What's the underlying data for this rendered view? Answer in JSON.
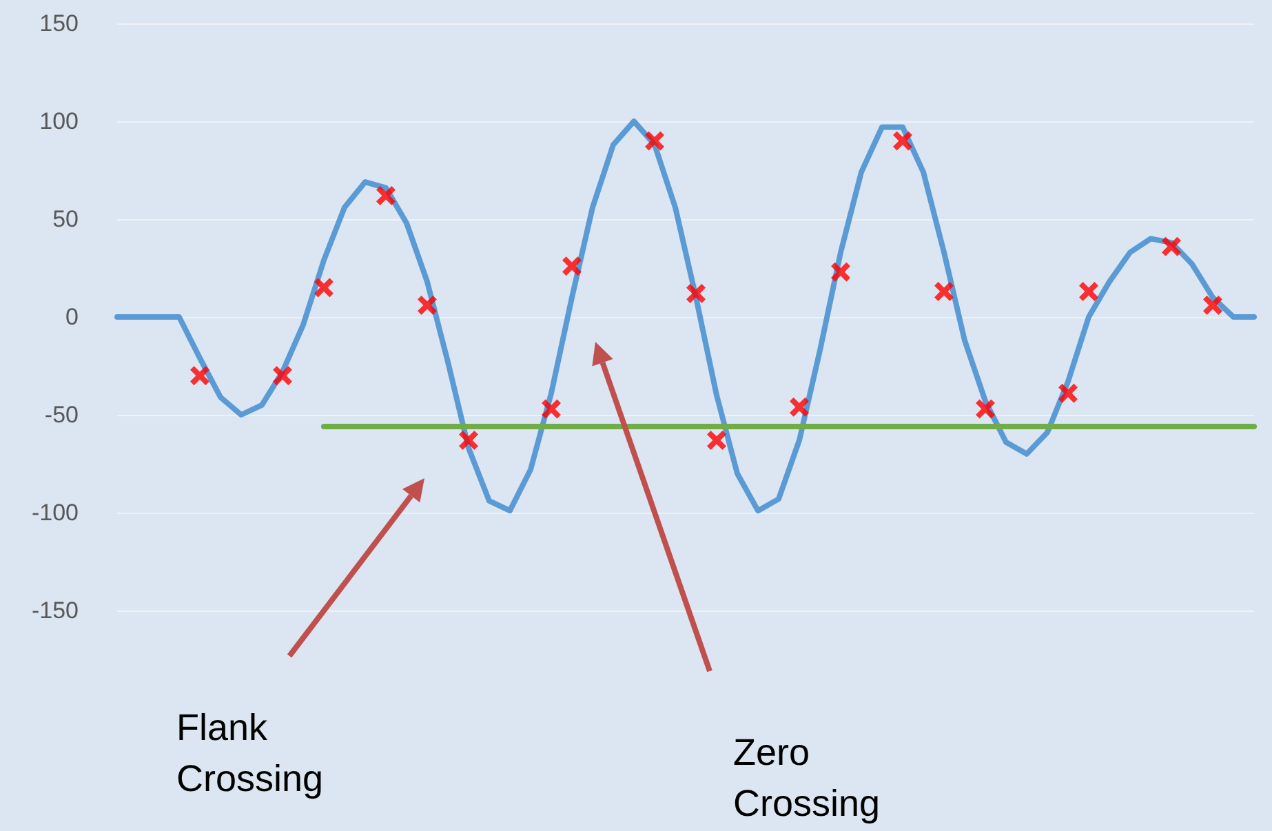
{
  "chart_data": {
    "type": "line",
    "categories": [
      null,
      null,
      null,
      null,
      null,
      null,
      null,
      null,
      null,
      null,
      null,
      null,
      null,
      null,
      null,
      null,
      null,
      null,
      null,
      null,
      null,
      null,
      null,
      null,
      null,
      null,
      null,
      null,
      null,
      null,
      null,
      null,
      null,
      null,
      null,
      null,
      null,
      null,
      null,
      null,
      null,
      null,
      null,
      null,
      null,
      null,
      null,
      null,
      null,
      null,
      null,
      null,
      null,
      null,
      null,
      null
    ],
    "ylim": [
      -150,
      150
    ],
    "yticks": [
      -150,
      -100,
      -50,
      0,
      50,
      100,
      150
    ],
    "grid": "y",
    "tick_labels": "y",
    "series": [
      {
        "type": "line",
        "color": "#5b9bd5",
        "marker": "none",
        "values": [
          0,
          0,
          0,
          0,
          -21,
          -41,
          -50,
          -45,
          -28,
          -4,
          29,
          56,
          69,
          66,
          48,
          18,
          -23,
          -67,
          -94,
          -99,
          -78,
          -39,
          10,
          56,
          88,
          100,
          88,
          56,
          10,
          -40,
          -80,
          -99,
          -93,
          -63,
          -17,
          33,
          74,
          97,
          97,
          74,
          33,
          -12,
          -43,
          -64,
          -70,
          -59,
          -33,
          0,
          18,
          33,
          40,
          38,
          27,
          10,
          0,
          0
        ]
      },
      {
        "type": "scatter",
        "color": "#ff0000",
        "marker": "cross",
        "values": [
          null,
          null,
          null,
          null,
          -30,
          null,
          null,
          null,
          -30,
          null,
          15,
          null,
          null,
          62,
          null,
          6,
          null,
          -63,
          null,
          null,
          null,
          -47,
          26,
          null,
          null,
          null,
          90,
          null,
          12,
          -63,
          null,
          null,
          null,
          -46,
          null,
          23,
          null,
          null,
          90,
          null,
          13,
          null,
          -47,
          null,
          null,
          null,
          -39,
          13,
          null,
          null,
          null,
          36,
          null,
          6,
          null,
          null
        ]
      },
      {
        "type": "line",
        "color": "#70ad47",
        "marker": "none",
        "values": [
          null,
          null,
          null,
          null,
          null,
          null,
          null,
          null,
          null,
          null,
          -56,
          -56,
          -56,
          -56,
          -56,
          -56,
          -56,
          -56,
          -56,
          -56,
          -56,
          -56,
          -56,
          -56,
          -56,
          -56,
          -56,
          -56,
          -56,
          -56,
          -56,
          -56,
          -56,
          -56,
          -56,
          -56,
          -56,
          -56,
          -56,
          -56,
          -56,
          -56,
          -56,
          -56,
          -56,
          -56,
          -56,
          -56,
          -56,
          -56,
          -56,
          -56,
          -56,
          -56,
          -56,
          -56
        ]
      }
    ],
    "annotations": [
      "Flank Crossing",
      "Zero Crossing"
    ]
  }
}
